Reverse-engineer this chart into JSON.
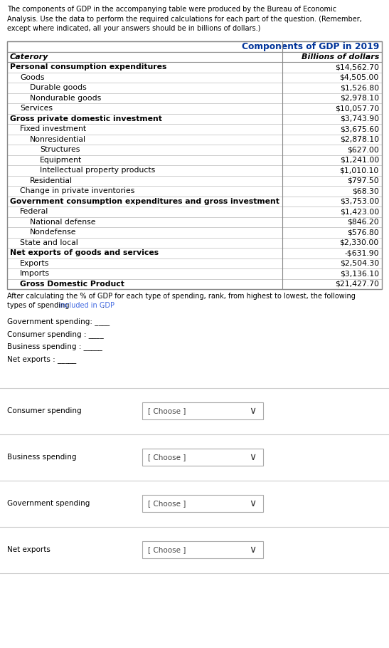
{
  "intro_text_parts": [
    {
      "text": "The components of GDP in the accompanying table were produced by the Bureau of Economic\nAnalysis. Use the data to perform the required calculations for each part of the question. (Remember,\nexcept where indicated, all your answers should be in billions of dollars.)",
      "color": "#000000"
    }
  ],
  "table_title": "Components of GDP in 2019",
  "col1_header": "Caterory",
  "col2_header": "Billions of dollars",
  "rows": [
    {
      "label": "Personal consumption expenditures",
      "value": "$14,562.70",
      "indent": 0,
      "bold": true
    },
    {
      "label": "Goods",
      "value": "$4,505.00",
      "indent": 1,
      "bold": false
    },
    {
      "label": "Durable goods",
      "value": "$1,526.80",
      "indent": 2,
      "bold": false
    },
    {
      "label": "Nondurable goods",
      "value": "$2,978.10",
      "indent": 2,
      "bold": false
    },
    {
      "label": "Services",
      "value": "$10,057.70",
      "indent": 1,
      "bold": false
    },
    {
      "label": "Gross private domestic investment",
      "value": "$3,743.90",
      "indent": 0,
      "bold": true
    },
    {
      "label": "Fixed investment",
      "value": "$3,675.60",
      "indent": 1,
      "bold": false
    },
    {
      "label": "Nonresidential",
      "value": "$2,878.10",
      "indent": 2,
      "bold": false
    },
    {
      "label": "Structures",
      "value": "$627.00",
      "indent": 3,
      "bold": false
    },
    {
      "label": "Equipment",
      "value": "$1,241.00",
      "indent": 3,
      "bold": false
    },
    {
      "label": "Intellectual property products",
      "value": "$1,010.10",
      "indent": 3,
      "bold": false
    },
    {
      "label": "Residential",
      "value": "$797.50",
      "indent": 2,
      "bold": false
    },
    {
      "label": "Change in private inventories",
      "value": "$68.30",
      "indent": 1,
      "bold": false
    },
    {
      "label": "Government consumption expenditures and gross investment",
      "value": "$3,753.00",
      "indent": 0,
      "bold": true
    },
    {
      "label": "Federal",
      "value": "$1,423.00",
      "indent": 1,
      "bold": false
    },
    {
      "label": "National defense",
      "value": "$846.20",
      "indent": 2,
      "bold": false
    },
    {
      "label": "Nondefense",
      "value": "$576.80",
      "indent": 2,
      "bold": false
    },
    {
      "label": "State and local",
      "value": "$2,330.00",
      "indent": 1,
      "bold": false
    },
    {
      "label": "Net exports of goods and services",
      "value": "-$631.90",
      "indent": 0,
      "bold": true
    },
    {
      "label": "Exports",
      "value": "$2,504.30",
      "indent": 1,
      "bold": false
    },
    {
      "label": "Imports",
      "value": "$3,136.10",
      "indent": 1,
      "bold": false
    },
    {
      "label": "Gross Domestic Product",
      "value": "$21,427.70",
      "indent": 1,
      "bold": true
    }
  ],
  "after_text_line1": "After calculating the % of GDP for each type of spending, rank, from highest to lowest, the following",
  "after_text_line2_parts": [
    {
      "text": "types of spending ",
      "color": "#000000"
    },
    {
      "text": "included in GDP",
      "color": "#4169e1"
    },
    {
      "text": ".",
      "color": "#000000"
    }
  ],
  "blanks": [
    "Government spending: ____",
    "Consumer spending : ____",
    "Business spending : _____",
    "Net exports : _____"
  ],
  "dropdowns": [
    {
      "label": "Consumer spending",
      "placeholder": "[ Choose ]"
    },
    {
      "label": "Business spending",
      "placeholder": "[ Choose ]"
    },
    {
      "label": "Government spending",
      "placeholder": "[ Choose ]"
    },
    {
      "label": "Net exports",
      "placeholder": "[ Choose ]"
    }
  ],
  "bg_color": "#ffffff",
  "title_text_color": "#003399",
  "table_border_color": "#888888",
  "row_line_color": "#bbbbbb"
}
